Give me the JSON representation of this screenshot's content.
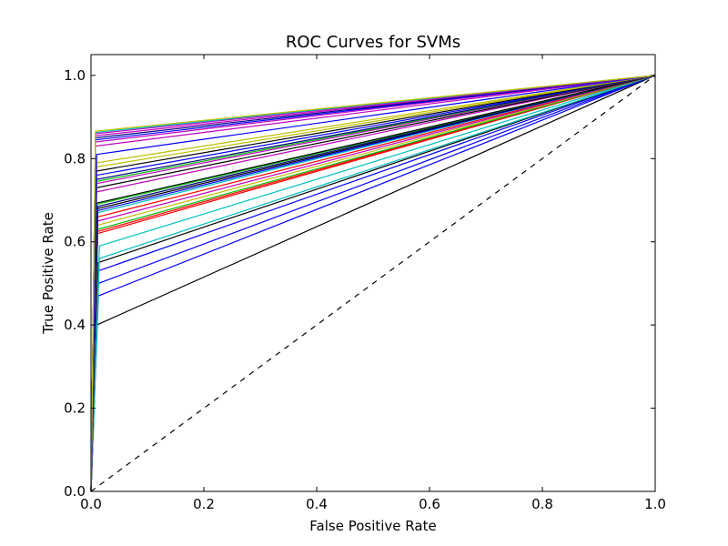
{
  "chart_data": {
    "type": "line",
    "title": "ROC Curves for SVMs",
    "xlabel": "False Positive Rate",
    "ylabel": "True Positive Rate",
    "xlim": [
      0.0,
      1.0
    ],
    "ylim": [
      0.0,
      1.05
    ],
    "x_ticks": [
      0.0,
      0.2,
      0.4,
      0.6,
      0.8,
      1.0
    ],
    "y_ticks": [
      0.0,
      0.2,
      0.4,
      0.6,
      0.8,
      1.0
    ],
    "x_tick_labels": [
      "0.0",
      "0.2",
      "0.4",
      "0.6",
      "0.8",
      "1.0"
    ],
    "y_tick_labels": [
      "0.0",
      "0.2",
      "0.4",
      "0.6",
      "0.8",
      "1.0"
    ],
    "grid": false,
    "legend": "none",
    "diagonal": {
      "x": [
        0.0,
        1.0
      ],
      "y": [
        0.0,
        1.0
      ],
      "color": "#000000",
      "style": "dashed"
    },
    "series": [
      {
        "color": "#000000",
        "x": [
          0.0,
          0.01,
          1.0
        ],
        "y": [
          0.0,
          0.4,
          1.0
        ]
      },
      {
        "color": "#0000ff",
        "x": [
          0.0,
          0.013,
          1.0
        ],
        "y": [
          0.0,
          0.47,
          1.0
        ]
      },
      {
        "color": "#0000ff",
        "x": [
          0.0,
          0.013,
          1.0
        ],
        "y": [
          0.0,
          0.5,
          1.0
        ]
      },
      {
        "color": "#0000ff",
        "x": [
          0.0,
          0.013,
          1.0
        ],
        "y": [
          0.0,
          0.53,
          1.0
        ]
      },
      {
        "color": "#000000",
        "x": [
          0.0,
          0.013,
          1.0
        ],
        "y": [
          0.0,
          0.55,
          1.0
        ]
      },
      {
        "color": "#00bfbf",
        "x": [
          0.0,
          0.015,
          1.0
        ],
        "y": [
          0.0,
          0.56,
          1.0
        ]
      },
      {
        "color": "#00bfbf",
        "x": [
          0.0,
          0.015,
          1.0
        ],
        "y": [
          0.0,
          0.59,
          1.0
        ]
      },
      {
        "color": "#ff0000",
        "x": [
          0.0,
          0.012,
          1.0
        ],
        "y": [
          0.0,
          0.62,
          1.0
        ]
      },
      {
        "color": "#ff0000",
        "x": [
          0.0,
          0.012,
          1.0
        ],
        "y": [
          0.0,
          0.625,
          1.0
        ]
      },
      {
        "color": "#00bf00",
        "x": [
          0.0,
          0.012,
          1.0
        ],
        "y": [
          0.0,
          0.63,
          1.0
        ]
      },
      {
        "color": "#bfbf00",
        "x": [
          0.0,
          0.012,
          1.0
        ],
        "y": [
          0.0,
          0.64,
          1.0
        ]
      },
      {
        "color": "#bf00bf",
        "x": [
          0.0,
          0.012,
          1.0
        ],
        "y": [
          0.0,
          0.65,
          1.0
        ]
      },
      {
        "color": "#ff0000",
        "x": [
          0.0,
          0.012,
          1.0
        ],
        "y": [
          0.0,
          0.66,
          1.0
        ]
      },
      {
        "color": "#00bfbf",
        "x": [
          0.0,
          0.012,
          1.0
        ],
        "y": [
          0.0,
          0.67,
          1.0
        ]
      },
      {
        "color": "#0000ff",
        "x": [
          0.0,
          0.012,
          1.0
        ],
        "y": [
          0.0,
          0.675,
          1.0
        ]
      },
      {
        "color": "#000000",
        "x": [
          0.0,
          0.012,
          1.0
        ],
        "y": [
          0.0,
          0.68,
          1.0
        ]
      },
      {
        "color": "#000080",
        "x": [
          0.0,
          0.012,
          1.0
        ],
        "y": [
          0.0,
          0.685,
          1.0
        ]
      },
      {
        "color": "#00bf00",
        "x": [
          0.0,
          0.01,
          1.0
        ],
        "y": [
          0.0,
          0.69,
          1.0
        ]
      },
      {
        "color": "#000000",
        "x": [
          0.0,
          0.01,
          1.0
        ],
        "y": [
          0.0,
          0.693,
          1.0
        ]
      },
      {
        "color": "#bf00bf",
        "x": [
          0.0,
          0.01,
          1.0
        ],
        "y": [
          0.0,
          0.72,
          1.0
        ]
      },
      {
        "color": "#000000",
        "x": [
          0.0,
          0.01,
          1.0
        ],
        "y": [
          0.0,
          0.73,
          1.0
        ]
      },
      {
        "color": "#bf00bf",
        "x": [
          0.0,
          0.01,
          1.0
        ],
        "y": [
          0.0,
          0.74,
          1.0
        ]
      },
      {
        "color": "#00bf00",
        "x": [
          0.0,
          0.01,
          1.0
        ],
        "y": [
          0.0,
          0.745,
          1.0
        ]
      },
      {
        "color": "#000080",
        "x": [
          0.0,
          0.01,
          1.0
        ],
        "y": [
          0.0,
          0.75,
          1.0
        ]
      },
      {
        "color": "#0000ff",
        "x": [
          0.0,
          0.01,
          1.0
        ],
        "y": [
          0.0,
          0.76,
          1.0
        ]
      },
      {
        "color": "#000000",
        "x": [
          0.0,
          0.01,
          1.0
        ],
        "y": [
          0.0,
          0.77,
          1.0
        ]
      },
      {
        "color": "#bfbf00",
        "x": [
          0.0,
          0.01,
          1.0
        ],
        "y": [
          0.0,
          0.78,
          1.0
        ]
      },
      {
        "color": "#bfbf00",
        "x": [
          0.0,
          0.01,
          1.0
        ],
        "y": [
          0.0,
          0.79,
          1.0
        ]
      },
      {
        "color": "#0000ff",
        "x": [
          0.0,
          0.01,
          1.0
        ],
        "y": [
          0.0,
          0.81,
          1.0
        ]
      },
      {
        "color": "#bf00bf",
        "x": [
          0.0,
          0.008,
          1.0
        ],
        "y": [
          0.0,
          0.83,
          1.0
        ]
      },
      {
        "color": "#bf00bf",
        "x": [
          0.0,
          0.008,
          1.0
        ],
        "y": [
          0.0,
          0.84,
          1.0
        ]
      },
      {
        "color": "#0000ff",
        "x": [
          0.0,
          0.008,
          1.0
        ],
        "y": [
          0.0,
          0.845,
          1.0
        ]
      },
      {
        "color": "#000080",
        "x": [
          0.0,
          0.008,
          1.0
        ],
        "y": [
          0.0,
          0.85,
          1.0
        ]
      },
      {
        "color": "#bf00bf",
        "x": [
          0.0,
          0.008,
          1.0
        ],
        "y": [
          0.0,
          0.855,
          1.0
        ]
      },
      {
        "color": "#bf00bf",
        "x": [
          0.0,
          0.008,
          1.0
        ],
        "y": [
          0.0,
          0.86,
          1.0
        ]
      },
      {
        "color": "#00bfbf",
        "x": [
          0.0,
          0.008,
          1.0
        ],
        "y": [
          0.0,
          0.863,
          1.0
        ]
      },
      {
        "color": "#bfbf00",
        "x": [
          0.0,
          0.008,
          1.0
        ],
        "y": [
          0.0,
          0.866,
          1.0
        ]
      }
    ]
  }
}
